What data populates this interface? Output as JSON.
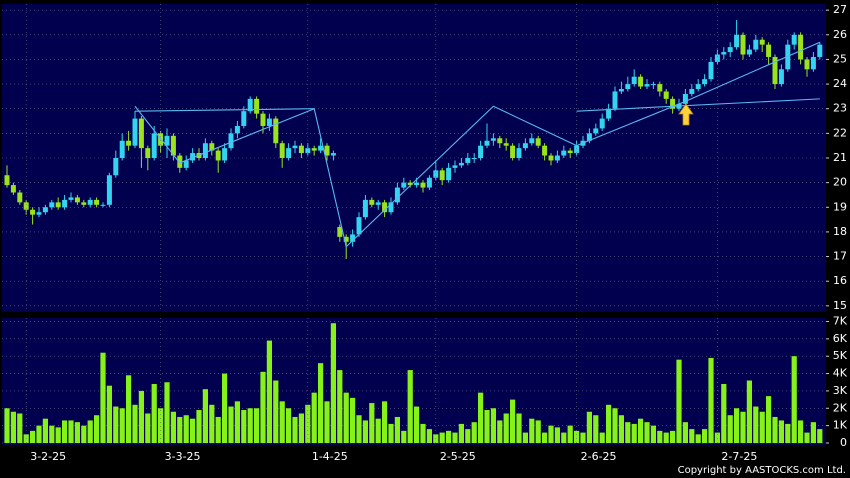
{
  "chart_data": [
    {
      "type": "candlestick",
      "open": [
        20.3,
        19.9,
        19.6,
        19.2,
        18.9,
        18.7,
        18.8,
        19.0,
        19.2,
        19.0,
        19.3,
        19.4,
        19.2,
        19.1,
        19.3,
        19.1,
        19.1,
        20.3,
        21.0,
        21.7,
        21.5,
        22.6,
        21.4,
        21.0,
        22.0,
        21.5,
        21.9,
        21.1,
        20.6,
        20.9,
        21.2,
        21.0,
        21.6,
        21.3,
        20.9,
        21.4,
        22.0,
        22.3,
        22.9,
        23.4,
        22.8,
        22.3,
        22.6,
        21.6,
        21.0,
        21.4,
        21.5,
        21.2,
        21.4,
        21.3,
        21.5,
        21.1,
        18.2,
        17.8,
        17.6,
        17.9,
        18.6,
        19.3,
        19.1,
        19.2,
        18.8,
        19.2,
        19.8,
        20.0,
        19.9,
        20.0,
        19.8,
        20.2,
        20.5,
        20.1,
        20.6,
        20.7,
        20.8,
        21.0,
        21.0,
        21.5,
        21.7,
        21.8,
        21.6,
        21.5,
        21.0,
        21.4,
        21.6,
        21.8,
        21.5,
        21.1,
        20.9,
        21.1,
        21.3,
        21.2,
        21.5,
        21.7,
        22.0,
        22.2,
        22.6,
        23.0,
        23.7,
        23.8,
        24.0,
        24.3,
        23.9,
        24.0,
        24.0,
        23.7,
        23.4,
        23.0,
        23.2,
        23.6,
        23.8,
        24.0,
        24.2,
        24.9,
        25.2,
        25.3,
        25.5,
        26.0,
        25.2,
        25.4,
        25.8,
        25.6,
        25.1,
        24.0,
        24.6,
        25.6,
        26.0,
        25.0,
        24.6,
        25.1
      ],
      "high": [
        20.7,
        20.0,
        19.7,
        19.3,
        19.0,
        19.0,
        19.1,
        19.3,
        19.4,
        19.5,
        19.6,
        19.5,
        19.3,
        19.4,
        19.4,
        19.2,
        20.4,
        21.3,
        22.0,
        22.1,
        22.9,
        22.7,
        21.5,
        22.3,
        22.1,
        22.2,
        22.0,
        21.2,
        21.1,
        21.4,
        21.4,
        21.8,
        21.7,
        21.4,
        21.6,
        22.2,
        22.5,
        23.1,
        23.5,
        23.5,
        22.9,
        22.8,
        22.7,
        21.7,
        21.6,
        21.7,
        21.6,
        21.6,
        21.5,
        21.8,
        21.6,
        21.3,
        18.3,
        17.9,
        18.1,
        18.8,
        19.5,
        19.4,
        19.3,
        19.3,
        19.4,
        20.0,
        20.2,
        20.1,
        20.2,
        20.1,
        20.3,
        20.9,
        20.6,
        20.8,
        20.9,
        21.0,
        21.2,
        21.2,
        21.7,
        22.4,
        22.0,
        21.9,
        21.8,
        21.6,
        21.6,
        21.8,
        22.0,
        21.9,
        21.6,
        21.2,
        21.3,
        21.5,
        21.4,
        21.7,
        21.9,
        22.2,
        22.4,
        22.8,
        23.2,
        23.9,
        24.1,
        24.3,
        24.6,
        24.4,
        24.2,
        24.1,
        24.1,
        23.8,
        23.5,
        23.4,
        23.8,
        24.0,
        24.2,
        24.4,
        25.1,
        25.4,
        25.5,
        25.7,
        26.6,
        26.1,
        25.6,
        26.0,
        25.9,
        25.7,
        25.2,
        24.8,
        25.8,
        26.1,
        26.1,
        25.1,
        25.3,
        25.7
      ],
      "low": [
        19.8,
        19.5,
        19.1,
        18.7,
        18.3,
        18.6,
        18.7,
        18.9,
        18.9,
        18.9,
        19.2,
        19.1,
        19.0,
        19.0,
        19.0,
        19.0,
        19.0,
        20.2,
        20.9,
        21.3,
        21.4,
        20.6,
        20.5,
        20.9,
        21.2,
        21.0,
        20.9,
        20.4,
        20.5,
        20.8,
        20.9,
        20.9,
        21.1,
        20.4,
        20.8,
        21.3,
        21.8,
        22.2,
        22.8,
        22.6,
        22.0,
        22.1,
        21.4,
        20.6,
        20.9,
        21.2,
        21.0,
        21.1,
        21.1,
        21.2,
        20.9,
        20.9,
        17.6,
        16.9,
        17.4,
        17.8,
        18.5,
        19.0,
        18.9,
        18.6,
        18.7,
        19.1,
        19.7,
        19.8,
        19.8,
        19.6,
        19.7,
        20.1,
        19.9,
        20.0,
        20.4,
        20.6,
        20.7,
        20.8,
        20.9,
        21.4,
        21.5,
        21.4,
        21.3,
        20.9,
        20.9,
        21.3,
        21.5,
        21.4,
        20.9,
        20.7,
        20.8,
        21.0,
        21.0,
        21.1,
        21.4,
        21.6,
        21.9,
        22.1,
        22.5,
        22.9,
        23.6,
        23.7,
        23.9,
        23.8,
        23.8,
        23.8,
        23.5,
        23.2,
        22.8,
        22.9,
        23.1,
        23.5,
        23.7,
        23.9,
        24.1,
        24.8,
        25.0,
        25.1,
        25.4,
        25.0,
        25.1,
        25.3,
        25.3,
        24.8,
        23.8,
        23.9,
        24.5,
        25.4,
        24.8,
        24.3,
        24.5,
        25.0
      ],
      "close": [
        19.9,
        19.6,
        19.2,
        18.9,
        18.7,
        18.8,
        19.0,
        19.2,
        19.0,
        19.3,
        19.4,
        19.2,
        19.1,
        19.3,
        19.1,
        19.1,
        20.3,
        21.0,
        21.7,
        21.5,
        22.6,
        21.4,
        21.0,
        22.0,
        21.5,
        21.9,
        21.1,
        20.6,
        20.9,
        21.2,
        21.0,
        21.6,
        21.3,
        20.9,
        21.4,
        22.0,
        22.3,
        22.9,
        23.4,
        22.8,
        22.3,
        22.6,
        21.6,
        21.0,
        21.4,
        21.5,
        21.2,
        21.4,
        21.3,
        21.5,
        21.1,
        21.2,
        17.8,
        17.6,
        17.9,
        18.6,
        19.3,
        19.1,
        19.2,
        18.8,
        19.2,
        19.8,
        20.0,
        19.9,
        20.0,
        19.8,
        20.2,
        20.5,
        20.1,
        20.6,
        20.7,
        20.8,
        21.0,
        21.0,
        21.5,
        21.7,
        21.8,
        21.6,
        21.5,
        21.0,
        21.4,
        21.6,
        21.8,
        21.5,
        21.1,
        20.9,
        21.1,
        21.3,
        21.2,
        21.5,
        21.7,
        22.0,
        22.2,
        22.6,
        23.0,
        23.7,
        23.8,
        24.0,
        24.3,
        23.9,
        24.0,
        24.0,
        23.7,
        23.4,
        23.0,
        23.2,
        23.6,
        23.8,
        24.0,
        24.2,
        24.9,
        25.2,
        25.3,
        25.5,
        26.0,
        25.2,
        25.4,
        25.8,
        25.6,
        25.1,
        24.0,
        24.6,
        25.6,
        26.0,
        25.0,
        24.6,
        25.1,
        25.6
      ],
      "up_color": "#33d4f0",
      "down_color": "#9be31a",
      "ylim": [
        14.75,
        27.25
      ],
      "yticks": [
        15,
        16,
        17,
        18,
        19,
        20,
        21,
        22,
        23,
        24,
        25,
        26,
        27
      ],
      "grid": true,
      "trendlines": [
        {
          "color": "#5ab8f0",
          "x": [
            20,
            48
          ],
          "y": [
            22.9,
            23.0
          ]
        },
        {
          "color": "#5ab8f0",
          "x": [
            89,
            127
          ],
          "y": [
            22.9,
            23.4
          ]
        },
        {
          "color": "#5ab8f0",
          "x": [
            20,
            27,
            48,
            53,
            76,
            89,
            106,
            127
          ],
          "y": [
            23.1,
            20.8,
            23.0,
            17.4,
            23.1,
            21.5,
            23.3,
            25.7
          ]
        }
      ]
    },
    {
      "type": "bar",
      "categories": [
        null,
        null,
        null,
        "3-2-25",
        null,
        null,
        null,
        null,
        null,
        null,
        null,
        null,
        null,
        null,
        null,
        null,
        null,
        null,
        null,
        null,
        null,
        null,
        null,
        null,
        "3-3-25",
        null,
        null,
        null,
        null,
        null,
        null,
        null,
        null,
        null,
        null,
        null,
        null,
        null,
        null,
        null,
        null,
        null,
        null,
        null,
        null,
        null,
        null,
        "1-4-25",
        null,
        null,
        null,
        null,
        null,
        null,
        null,
        null,
        null,
        null,
        null,
        null,
        null,
        null,
        null,
        null,
        null,
        null,
        null,
        "2-5-25",
        null,
        null,
        null,
        null,
        null,
        null,
        null,
        null,
        null,
        null,
        null,
        null,
        null,
        null,
        null,
        null,
        null,
        null,
        null,
        null,
        null,
        "2-6-25",
        null,
        null,
        null,
        null,
        null,
        null,
        null,
        null,
        null,
        null,
        null,
        null,
        null,
        null,
        null,
        null,
        null,
        null,
        null,
        null,
        null,
        "2-7-25",
        null,
        null,
        null,
        null,
        null,
        null,
        null,
        null,
        null,
        null,
        null,
        null,
        null,
        null,
        null,
        null
      ],
      "values": [
        2000,
        1800,
        1700,
        500,
        700,
        1000,
        1400,
        1000,
        900,
        1300,
        1300,
        1200,
        1000,
        1300,
        1600,
        5200,
        3300,
        2100,
        2000,
        3900,
        2200,
        3000,
        1700,
        3400,
        2000,
        3500,
        1800,
        1500,
        1600,
        1400,
        1900,
        3100,
        2200,
        1500,
        4000,
        2100,
        2400,
        1900,
        2000,
        2000,
        4100,
        5900,
        3600,
        2400,
        2000,
        1500,
        1700,
        2200,
        2900,
        4600,
        2400,
        6900,
        4200,
        2900,
        2600,
        1600,
        1300,
        2300,
        1400,
        2400,
        1100,
        1500,
        700,
        4200,
        2100,
        1100,
        800,
        500,
        600,
        700,
        600,
        1100,
        800,
        1200,
        2900,
        1900,
        2000,
        1300,
        1700,
        2500,
        1700,
        600,
        1400,
        1300,
        600,
        1000,
        900,
        600,
        1000,
        700,
        600,
        1800,
        1600,
        600,
        2200,
        2000,
        1600,
        1200,
        1100,
        1400,
        1200,
        1000,
        700,
        600,
        700,
        4800,
        1200,
        800,
        500,
        800,
        4900,
        600,
        3400,
        1600,
        2000,
        1800,
        3600,
        2100,
        1800,
        2700,
        1500,
        1300,
        1100,
        5000,
        1300,
        600,
        1200,
        800
      ],
      "color": "#86f21a",
      "ylim": [
        0,
        7200
      ],
      "yticks": [
        0,
        {
          "value": 1000,
          "label": "1K"
        },
        {
          "value": 2000,
          "label": "2K"
        },
        {
          "value": 3000,
          "label": "3K"
        },
        {
          "value": 4000,
          "label": "4K"
        },
        {
          "value": 5000,
          "label": "5K"
        },
        {
          "value": 6000,
          "label": "6K"
        },
        {
          "value": 7000,
          "label": "7K"
        }
      ],
      "grid": true
    }
  ],
  "footer": {
    "copyright": "Copyright by AASTOCKS.com Ltd."
  }
}
